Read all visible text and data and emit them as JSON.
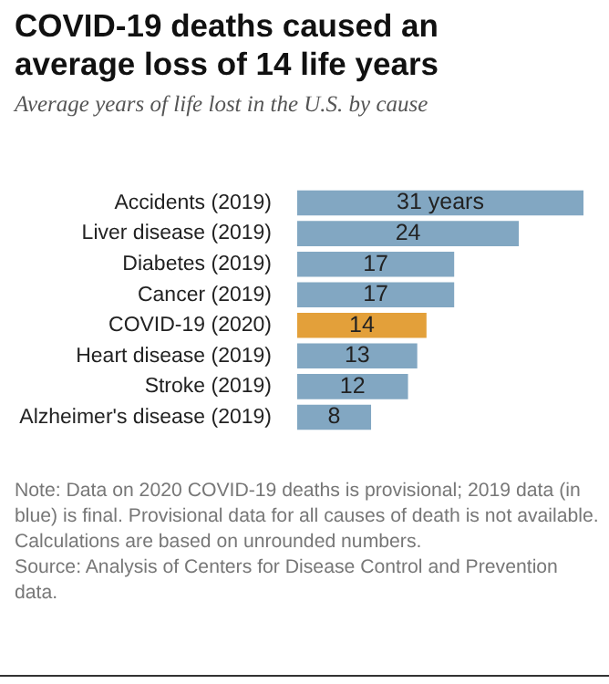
{
  "chart_data": {
    "type": "bar",
    "orientation": "horizontal",
    "title": "COVID-19 deaths caused an average loss of 14 life years",
    "subtitle": "Average years of life lost in the U.S. by cause",
    "categories": [
      "Accidents (2019)",
      "Liver disease (2019)",
      "Diabetes (2019)",
      "Cancer (2019)",
      "COVID-19 (2020)",
      "Heart disease (2019)",
      "Stroke (2019)",
      "Alzheimer's disease (2019)"
    ],
    "values": [
      31,
      24,
      17,
      17,
      14,
      13,
      12,
      8
    ],
    "colors": [
      "#82a7c2",
      "#82a7c2",
      "#82a7c2",
      "#82a7c2",
      "#e3a03a",
      "#82a7c2",
      "#82a7c2",
      "#82a7c2"
    ],
    "value_labels": [
      "31 years",
      "24",
      "17",
      "17",
      "14",
      "13",
      "12",
      "8"
    ],
    "annotations": [
      "Note: Data on 2020 COVID-19 deaths is provisional; 2019 data (in blue) is final. Provisional data for all causes of death is not available. Calculations are based on unrounded numbers.",
      "Source: Analysis of Centers for Disease Control and Prevention data."
    ]
  }
}
